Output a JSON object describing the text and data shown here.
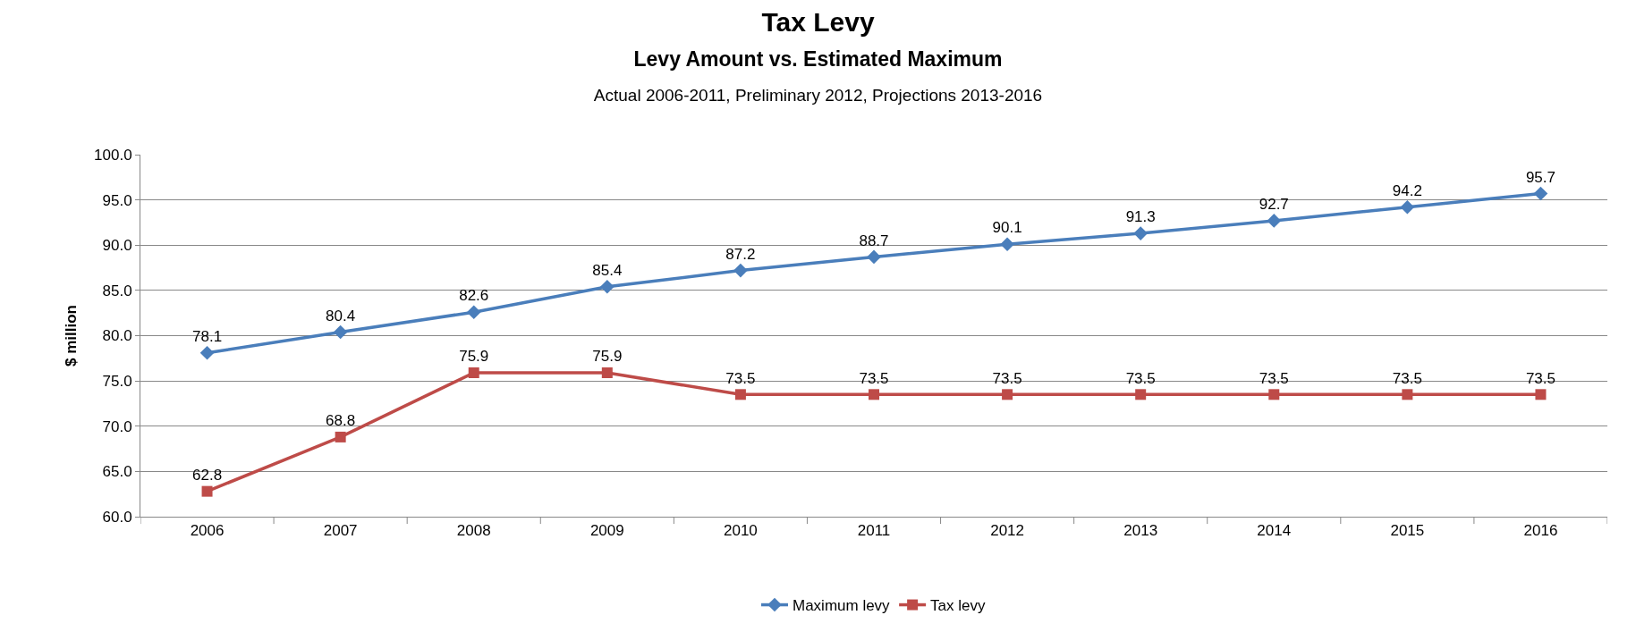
{
  "chart_data": {
    "type": "line",
    "title": "Tax Levy",
    "subtitle": "Levy Amount vs. Estimated Maximum",
    "annotations": [
      "Actual 2006-2011, Preliminary 2012, Projections 2013-2016"
    ],
    "ylabel": "$ million",
    "categories": [
      "2006",
      "2007",
      "2008",
      "2009",
      "2010",
      "2011",
      "2012",
      "2013",
      "2014",
      "2015",
      "2016"
    ],
    "series": [
      {
        "name": "Maximum levy",
        "color": "#4a7ebb",
        "marker": "diamond",
        "values": [
          78.1,
          80.4,
          82.6,
          85.4,
          87.2,
          88.7,
          90.1,
          91.3,
          92.7,
          94.2,
          95.7
        ]
      },
      {
        "name": "Tax levy",
        "color": "#be4b48",
        "marker": "square",
        "values": [
          62.8,
          68.8,
          75.9,
          75.9,
          73.5,
          73.5,
          73.5,
          73.5,
          73.5,
          73.5,
          73.5
        ]
      }
    ],
    "ylim": [
      60,
      100
    ],
    "yticks": [
      {
        "value": 60,
        "label": "60.0"
      },
      {
        "value": 65,
        "label": "65.0"
      },
      {
        "value": 70,
        "label": "70.0"
      },
      {
        "value": 75,
        "label": "75.0"
      },
      {
        "value": 80,
        "label": "80.0"
      },
      {
        "value": 85,
        "label": "85.0"
      },
      {
        "value": 90,
        "label": "90.0"
      },
      {
        "value": 95,
        "label": "95.0"
      },
      {
        "value": 100,
        "label": "100.0"
      }
    ],
    "grid": "y",
    "legend": "bottom",
    "data_labels": true,
    "line_style": "solid"
  }
}
